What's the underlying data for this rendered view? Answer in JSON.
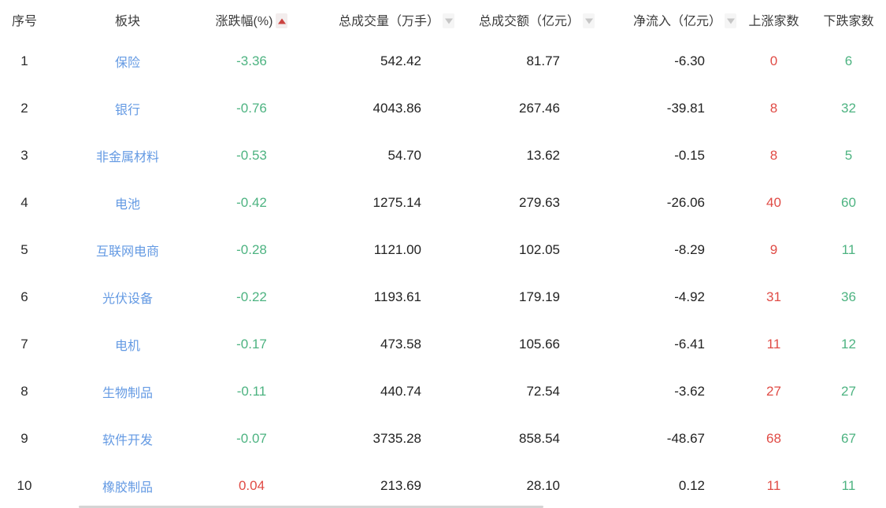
{
  "table": {
    "columns": [
      {
        "key": "index",
        "label": "序号"
      },
      {
        "key": "sector",
        "label": "板块"
      },
      {
        "key": "change_pct",
        "label": "涨跌幅(%)",
        "sort_icon": "sort-up-red"
      },
      {
        "key": "volume",
        "label": "总成交量（万手）",
        "sort_icon": "sort-down-gray"
      },
      {
        "key": "turnover",
        "label": "总成交额（亿元）",
        "sort_icon": "sort-down-gray"
      },
      {
        "key": "net_inflow",
        "label": "净流入（亿元）",
        "sort_icon": "sort-down-gray"
      },
      {
        "key": "gainers",
        "label": "上涨家数"
      },
      {
        "key": "losers",
        "label": "下跌家数"
      }
    ],
    "rows": [
      {
        "index": "1",
        "sector": "保险",
        "change_pct": "-3.36",
        "volume": "542.42",
        "turnover": "81.77",
        "net_inflow": "-6.30",
        "gainers": "0",
        "losers": "6"
      },
      {
        "index": "2",
        "sector": "银行",
        "change_pct": "-0.76",
        "volume": "4043.86",
        "turnover": "267.46",
        "net_inflow": "-39.81",
        "gainers": "8",
        "losers": "32"
      },
      {
        "index": "3",
        "sector": "非金属材料",
        "change_pct": "-0.53",
        "volume": "54.70",
        "turnover": "13.62",
        "net_inflow": "-0.15",
        "gainers": "8",
        "losers": "5"
      },
      {
        "index": "4",
        "sector": "电池",
        "change_pct": "-0.42",
        "volume": "1275.14",
        "turnover": "279.63",
        "net_inflow": "-26.06",
        "gainers": "40",
        "losers": "60"
      },
      {
        "index": "5",
        "sector": "互联网电商",
        "change_pct": "-0.28",
        "volume": "1121.00",
        "turnover": "102.05",
        "net_inflow": "-8.29",
        "gainers": "9",
        "losers": "11"
      },
      {
        "index": "6",
        "sector": "光伏设备",
        "change_pct": "-0.22",
        "volume": "1193.61",
        "turnover": "179.19",
        "net_inflow": "-4.92",
        "gainers": "31",
        "losers": "36"
      },
      {
        "index": "7",
        "sector": "电机",
        "change_pct": "-0.17",
        "volume": "473.58",
        "turnover": "105.66",
        "net_inflow": "-6.41",
        "gainers": "11",
        "losers": "12"
      },
      {
        "index": "8",
        "sector": "生物制品",
        "change_pct": "-0.11",
        "volume": "440.74",
        "turnover": "72.54",
        "net_inflow": "-3.62",
        "gainers": "27",
        "losers": "27"
      },
      {
        "index": "9",
        "sector": "软件开发",
        "change_pct": "-0.07",
        "volume": "3735.28",
        "turnover": "858.54",
        "net_inflow": "-48.67",
        "gainers": "68",
        "losers": "67"
      },
      {
        "index": "10",
        "sector": "橡胶制品",
        "change_pct": "0.04",
        "volume": "213.69",
        "turnover": "28.10",
        "net_inflow": "0.12",
        "gainers": "11",
        "losers": "11"
      }
    ]
  },
  "colors": {
    "link_blue": "#649ae3",
    "down_green": "#4db381",
    "up_red": "#e04b45",
    "sort_arrow_red": "#cb4340",
    "sort_arrow_gray": "#c6c6c6",
    "text_dark": "#222222",
    "header_text": "#3c3c3c"
  }
}
